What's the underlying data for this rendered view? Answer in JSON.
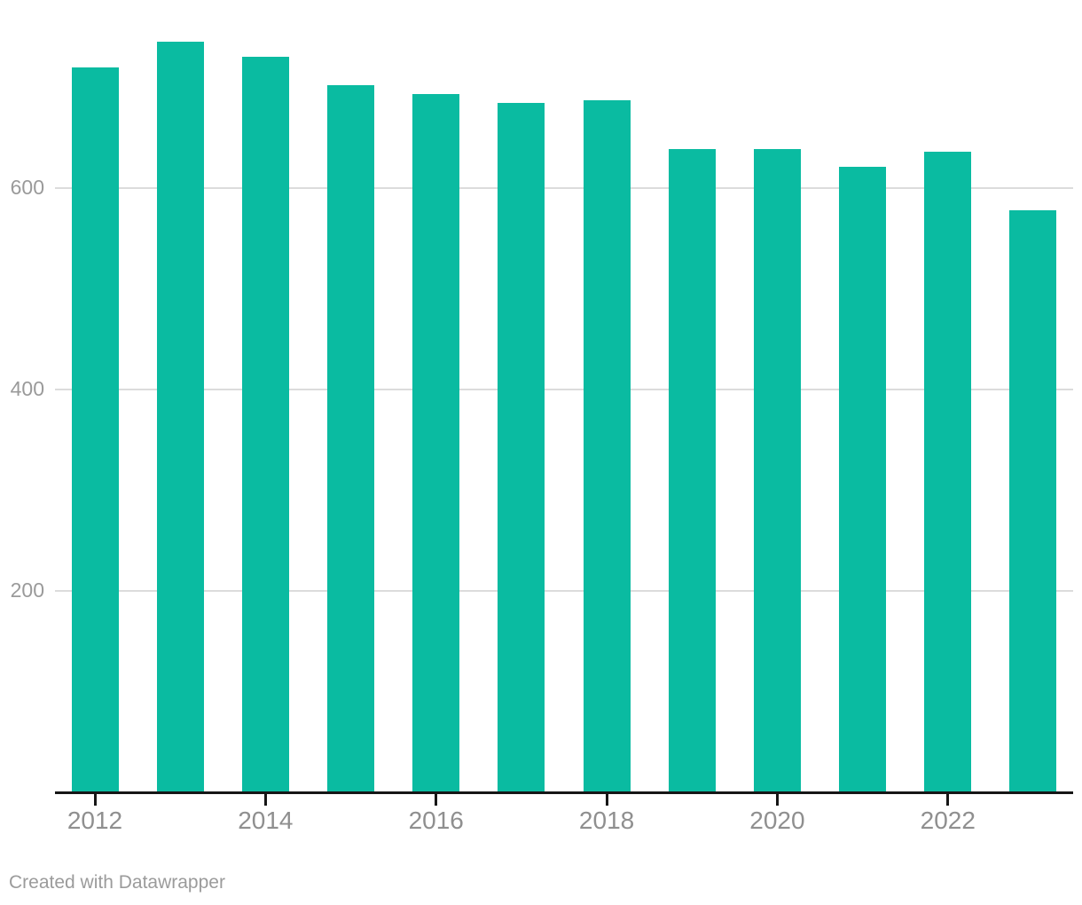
{
  "chart_data": {
    "type": "bar",
    "categories": [
      "2012",
      "2013",
      "2014",
      "2015",
      "2016",
      "2017",
      "2018",
      "2019",
      "2020",
      "2021",
      "2022",
      "2023"
    ],
    "values": [
      720,
      745,
      730,
      702,
      693,
      685,
      687,
      639,
      639,
      621,
      636,
      578
    ],
    "title": "",
    "xlabel": "",
    "ylabel": "",
    "ylim": [
      0,
      786
    ],
    "y_ticks": [
      200,
      400,
      600
    ],
    "x_tick_labels": [
      "2012",
      "2014",
      "2016",
      "2018",
      "2020",
      "2022"
    ],
    "grid": "horizontal-behind-bars",
    "legend": "none",
    "bar_color": "#0abba1",
    "axis_line_color": "#161616",
    "gridline_color": "#dcdcdc",
    "tick_label_color": "#8f8f8f"
  },
  "footer": {
    "credit": "Created with Datawrapper"
  }
}
